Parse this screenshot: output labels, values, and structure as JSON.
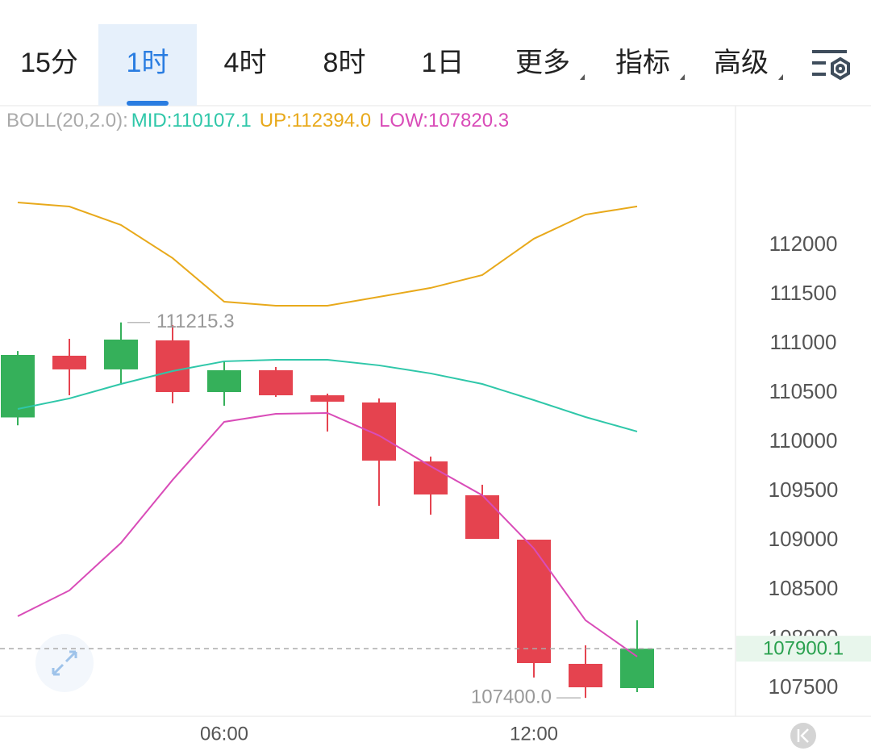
{
  "tabs": [
    "15分",
    "1时",
    "4时",
    "8时",
    "1日",
    "更多",
    "指标",
    "高级"
  ],
  "active_tab": 1,
  "chart_data": {
    "type": "candlestick",
    "indicator": "BOLL(20,2.0):",
    "categories": [
      null,
      null,
      null,
      null,
      "06:00",
      null,
      null,
      null,
      null,
      null,
      "12:00",
      null,
      null
    ],
    "open": [
      110250,
      110877,
      110738,
      111033,
      110508,
      110730,
      110475,
      110402,
      109803,
      109459,
      109008,
      107746,
      107500
    ],
    "high": [
      110925,
      111049,
      111215.3,
      111189,
      110820,
      110762,
      110492,
      110443,
      109852,
      109566,
      109008,
      107934,
      108189
    ],
    "low": [
      110170,
      110475,
      110598,
      110393,
      110369,
      110459,
      110107,
      109352,
      109262,
      109016,
      107607,
      107400.0,
      107459
    ],
    "close": [
      110885,
      110738,
      111041,
      110508,
      110730,
      110475,
      110410,
      109811,
      109467,
      109016,
      107754,
      107508,
      107900.1
    ],
    "up_color": "#35b05a",
    "down_color": "#e5434f",
    "series": [
      {
        "name": "MID:110107.1",
        "color": "#2fc7a9",
        "values": [
          110336,
          110443,
          110590,
          110721,
          110820,
          110836,
          110836,
          110779,
          110697,
          110590,
          110426,
          110254,
          110107.1
        ]
      },
      {
        "name": "UP:112394.0",
        "color": "#e8a91b",
        "values": [
          112434,
          112393,
          112205,
          111869,
          111426,
          111385,
          111385,
          111475,
          111566,
          111697,
          112066,
          112311,
          112394.0
        ]
      },
      {
        "name": "LOW:107820.3",
        "color": "#d94cb8",
        "values": [
          108230,
          108492,
          108975,
          109615,
          110205,
          110287,
          110295,
          110066,
          109754,
          109459,
          108918,
          108189,
          107820.3
        ]
      }
    ],
    "max_label": "111215.3",
    "min_label": "107400.0",
    "last_label": "107900.1",
    "ylim": [
      107213,
      113385
    ],
    "yticks": [
      107500,
      108000,
      108500,
      109000,
      109500,
      110000,
      110500,
      111000,
      111500,
      112000
    ]
  }
}
